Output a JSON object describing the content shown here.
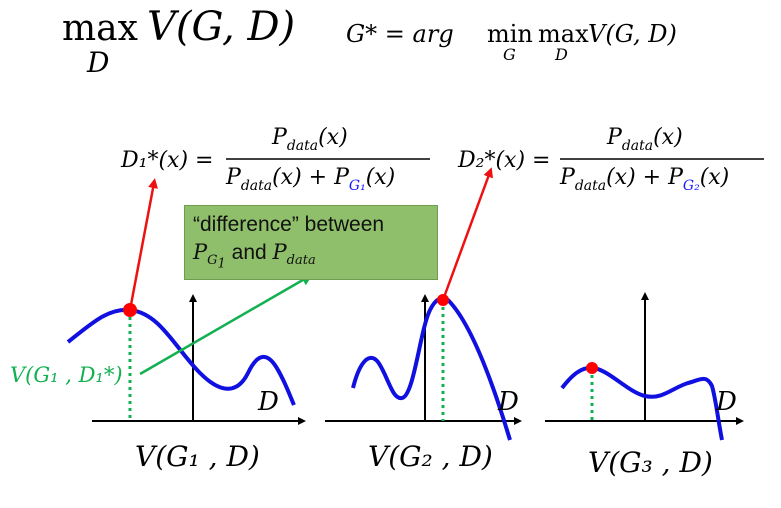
{
  "top_formula": {
    "max_op": "max",
    "max_sub": "D",
    "objective": "V(G, D)",
    "gstar_lhs": "G* = arg",
    "min_op": "min",
    "min_sub": "G",
    "max2_op": "max",
    "max2_sub": "D",
    "gstar_rhs": "V(G, D)"
  },
  "dstar1": {
    "lhs": "D₁*(x) =",
    "numerator": "P",
    "numerator_sub": "data",
    "numerator_arg": "(x)",
    "denominator_part1": "P",
    "denominator_sub1": "data",
    "denominator_mid": "(x) + P",
    "denominator_sub2": "G₁",
    "denominator_end": "(x)"
  },
  "dstar2": {
    "lhs": "D₂*(x) =",
    "numerator": "P",
    "numerator_sub": "data",
    "numerator_arg": "(x)",
    "denominator_part1": "P",
    "denominator_sub1": "data",
    "denominator_mid": "(x) + P",
    "denominator_sub2": "G₂",
    "denominator_end": "(x)"
  },
  "callout": {
    "line1": "“difference” between",
    "line2_p": "P",
    "line2_p_sub": "G",
    "line2_p_subsub": "1",
    "line2_and": " and ",
    "line2_pdata": "P",
    "line2_pdata_sub": "data"
  },
  "plots": [
    {
      "axis_label": "D",
      "caption": "V(G₁ , D)"
    },
    {
      "axis_label": "D",
      "caption": "V(G₂ , D)"
    },
    {
      "axis_label": "D",
      "caption": "V(G₃ , D)"
    }
  ],
  "vlabel": "V(G₁ , D₁*)",
  "colors": {
    "curve": "#1010e0",
    "point": "#ff0000",
    "red_arrow": "#ee1111",
    "green": "#12b050",
    "blue_sub": "#1a1aff",
    "callout_bg": "#8fbf6a"
  }
}
